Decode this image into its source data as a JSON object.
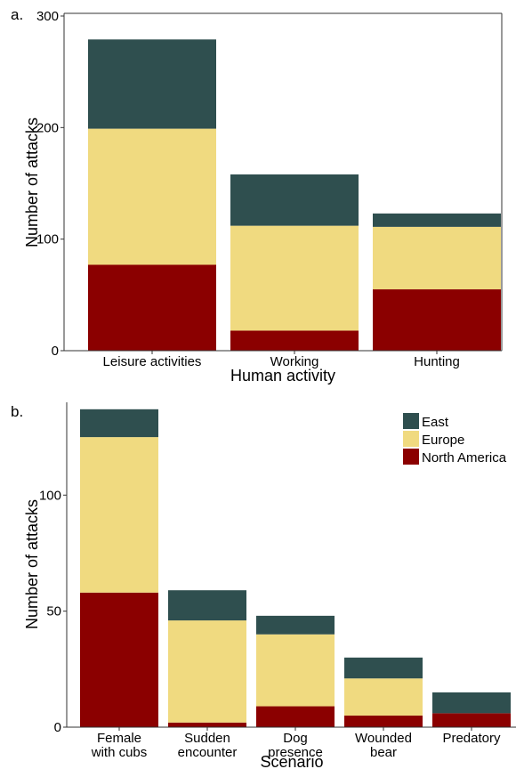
{
  "colors": {
    "East": "#2f4f4f",
    "Europe": "#f0da80",
    "North America": "#8b0000"
  },
  "legend": [
    "East",
    "Europe",
    "North America"
  ],
  "chart_data": [
    {
      "panel_label": "a.",
      "type": "bar",
      "stacked": true,
      "categories": [
        [
          "Leisure activities"
        ],
        [
          "Working"
        ],
        [
          "Hunting"
        ]
      ],
      "series": [
        {
          "name": "North America",
          "values": [
            77,
            18,
            55
          ]
        },
        {
          "name": "Europe",
          "values": [
            122,
            94,
            56
          ]
        },
        {
          "name": "East",
          "values": [
            80,
            46,
            12
          ]
        }
      ],
      "xlabel": "Human activity",
      "ylabel": "Number of attacks",
      "ylim": [
        0,
        300
      ],
      "yticks": [
        0,
        100,
        200,
        300
      ],
      "grid": false
    },
    {
      "panel_label": "b.",
      "type": "bar",
      "stacked": true,
      "categories": [
        [
          "Female",
          "with cubs"
        ],
        [
          "Sudden",
          "encounter"
        ],
        [
          "Dog",
          "presence"
        ],
        [
          "Wounded",
          "bear"
        ],
        [
          "Predatory"
        ]
      ],
      "series": [
        {
          "name": "North America",
          "values": [
            58,
            2,
            9,
            5,
            6
          ]
        },
        {
          "name": "Europe",
          "values": [
            67,
            44,
            31,
            16,
            0
          ]
        },
        {
          "name": "East",
          "values": [
            12,
            13,
            8,
            9,
            9
          ]
        }
      ],
      "xlabel": "Scenario",
      "ylabel": "Number of attacks",
      "ylim": [
        0,
        140
      ],
      "yticks": [
        0,
        50,
        100
      ],
      "grid": false,
      "legend_position": "top-right"
    }
  ]
}
